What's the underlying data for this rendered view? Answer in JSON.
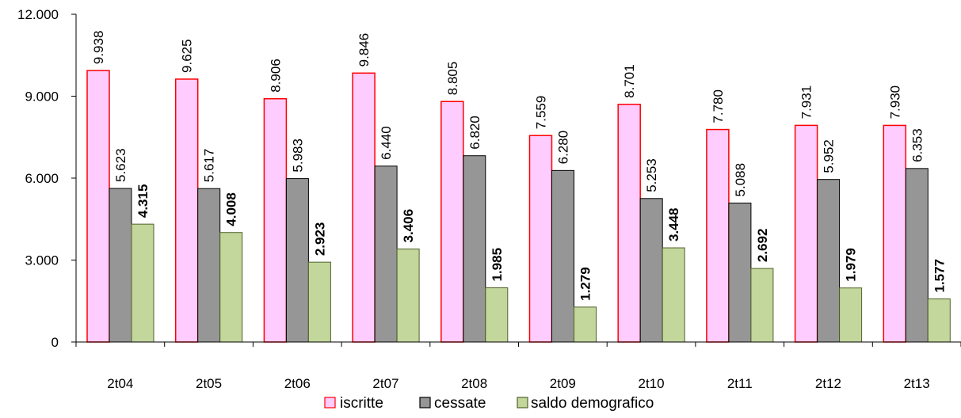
{
  "chart_data": {
    "type": "bar",
    "categories": [
      "2t04",
      "2t05",
      "2t06",
      "2t07",
      "2t08",
      "2t09",
      "2t10",
      "2t11",
      "2t12",
      "2t13"
    ],
    "series": [
      {
        "name": "iscritte",
        "values": [
          9938,
          9625,
          8906,
          9846,
          8805,
          7559,
          8701,
          7780,
          7931,
          7930
        ],
        "labels": [
          "9.938",
          "9.625",
          "8.906",
          "9.846",
          "8.805",
          "7.559",
          "8.701",
          "7.780",
          "7.931",
          "7.930"
        ],
        "fill": "#FFCCFF",
        "stroke": "#FF0000",
        "label_bold": false
      },
      {
        "name": "cessate",
        "values": [
          5623,
          5617,
          5983,
          6440,
          6820,
          6280,
          5253,
          5088,
          5952,
          6353
        ],
        "labels": [
          "5.623",
          "5.617",
          "5.983",
          "6.440",
          "6.820",
          "6.280",
          "5.253",
          "5.088",
          "5.952",
          "6.353"
        ],
        "fill": "#969696",
        "stroke": "#000000",
        "label_bold": false
      },
      {
        "name": "saldo demografico",
        "values": [
          4315,
          4008,
          2923,
          3406,
          1985,
          1279,
          3448,
          2692,
          1979,
          1577
        ],
        "labels": [
          "4.315",
          "4.008",
          "2.923",
          "3.406",
          "1.985",
          "1.279",
          "3.448",
          "2.692",
          "1.979",
          "1.577"
        ],
        "fill": "#C3D69B",
        "stroke": "#4F6228",
        "label_bold": true
      }
    ],
    "ylim": [
      0,
      12000
    ],
    "yticks": [
      0,
      3000,
      6000,
      9000,
      12000
    ],
    "ytick_labels": [
      "0",
      "3.000",
      "6.000",
      "9.000",
      "12.000"
    ],
    "grid": false,
    "legend_position": "bottom"
  }
}
